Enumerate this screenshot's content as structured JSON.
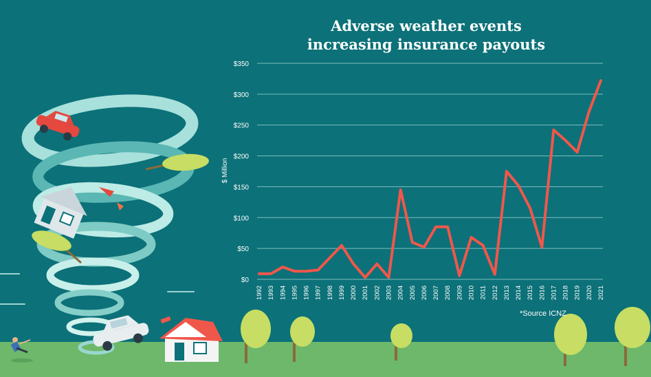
{
  "chart_data": {
    "type": "line",
    "title_lines": [
      "Adverse weather events",
      "increasing insurance payouts"
    ],
    "ylabel": "$ Million",
    "xlabel": "",
    "ylim": [
      0,
      350
    ],
    "yticks": [
      0,
      50,
      100,
      150,
      200,
      250,
      300,
      350
    ],
    "ytick_labels": [
      "$0",
      "$50",
      "$100",
      "$150",
      "$200",
      "$250",
      "$300",
      "$350"
    ],
    "grid": true,
    "line_color": "#f0574b",
    "x": [
      "1992",
      "1993",
      "1994",
      "1995",
      "1996",
      "1997",
      "1998",
      "1999",
      "2000",
      "2001",
      "2002",
      "2003",
      "2004",
      "2005",
      "2006",
      "2007",
      "2008",
      "2009",
      "2010",
      "2011",
      "2012",
      "2013",
      "2014",
      "2015",
      "2016",
      "2017",
      "2018",
      "2019",
      "2020",
      "2021"
    ],
    "values": [
      9,
      9,
      20,
      13,
      13,
      15,
      35,
      55,
      25,
      3,
      25,
      3,
      145,
      60,
      52,
      85,
      85,
      6,
      68,
      55,
      8,
      175,
      152,
      115,
      52,
      242,
      225,
      206,
      272,
      322
    ],
    "source": "*Source ICNZ"
  },
  "colors": {
    "background": "#0c7178",
    "grid": "#7fc0c2",
    "ground": "#6db86a",
    "line": "#f0574b"
  }
}
